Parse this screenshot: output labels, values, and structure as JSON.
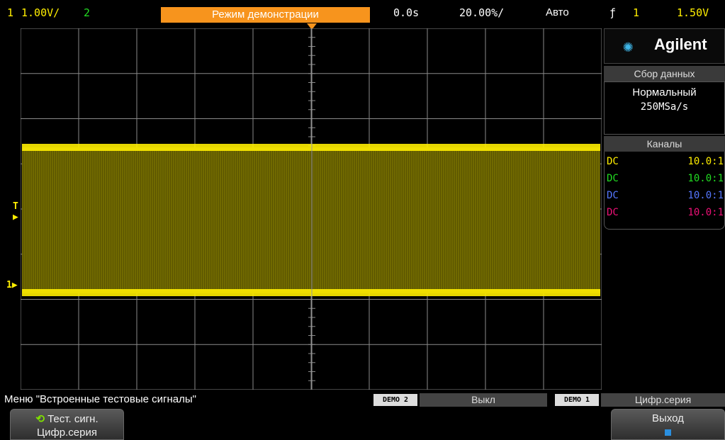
{
  "status_bar": {
    "ch1_num": "1",
    "ch1_scale": "1.00V/",
    "ch2_num": "2",
    "mode": "Режим демонстрации",
    "delay": "0.0s",
    "timebase": "20.00%/",
    "trigger_mode": "Авто",
    "trigger_slope_symbol": "ƒ",
    "trigger_channel": "1",
    "trigger_level": "1.50V"
  },
  "side_panel": {
    "logo": "Agilent",
    "acquisition_header": "Сбор данных",
    "acquisition_mode": "Нормальный",
    "sample_rate": "250MSa/s",
    "channels_header": "Каналы",
    "channels": [
      {
        "coupling": "DC",
        "probe": "10.0:1",
        "color": "#ffee00"
      },
      {
        "coupling": "DC",
        "probe": "10.0:1",
        "color": "#22dd22"
      },
      {
        "coupling": "DC",
        "probe": "10.0:1",
        "color": "#5577ff"
      },
      {
        "coupling": "DC",
        "probe": "10.0:1",
        "color": "#ee1177"
      }
    ]
  },
  "screen": {
    "trigger_marker_label": "T",
    "ch1_ground_label": "1"
  },
  "menu_bar": {
    "title": "Меню \"Встроенные тестовые сигналы\"",
    "demo2_tag": "DEMO 2",
    "demo2_value": "Выкл",
    "demo1_tag": "DEMO 1",
    "demo1_value": "Цифр.серия"
  },
  "softkeys": {
    "test_signal_line1": "Тест. сигн.",
    "test_signal_line2": "Цифр.серия",
    "exit_label": "Выход"
  },
  "colors": {
    "ch1": "#ffee00",
    "mode_badge": "#f7941d",
    "grid": "#8a8a8a"
  }
}
